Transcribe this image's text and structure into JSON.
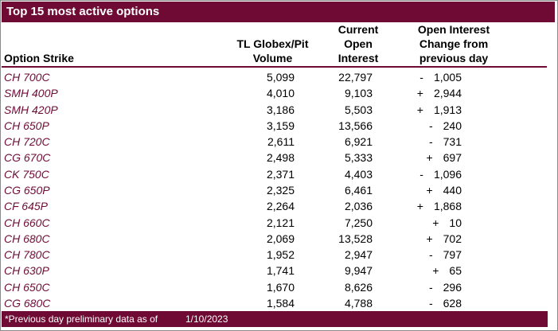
{
  "title": "Top 15 most active options",
  "columns": {
    "strike": "Option Strike",
    "volume": "TL Globex/Pit\nVolume",
    "open_interest": "Current\nOpen\nInterest",
    "change": "Open Interest\nChange from\nprevious day"
  },
  "rows": [
    {
      "strike": "CH 700C",
      "volume": "5,099",
      "open_interest": "22,797",
      "change_sign": "-",
      "change_value": "1,005"
    },
    {
      "strike": "SMH 400P",
      "volume": "4,010",
      "open_interest": "9,103",
      "change_sign": "+",
      "change_value": "2,944"
    },
    {
      "strike": "SMH 420P",
      "volume": "3,186",
      "open_interest": "5,503",
      "change_sign": "+",
      "change_value": "1,913"
    },
    {
      "strike": "CH 650P",
      "volume": "3,159",
      "open_interest": "13,566",
      "change_sign": "-",
      "change_value": "240"
    },
    {
      "strike": "CH 720C",
      "volume": "2,611",
      "open_interest": "6,921",
      "change_sign": "-",
      "change_value": "731"
    },
    {
      "strike": "CG 670C",
      "volume": "2,498",
      "open_interest": "5,333",
      "change_sign": "+",
      "change_value": "697"
    },
    {
      "strike": "CK 750C",
      "volume": "2,371",
      "open_interest": "4,403",
      "change_sign": "-",
      "change_value": "1,096"
    },
    {
      "strike": "CG 650P",
      "volume": "2,325",
      "open_interest": "6,461",
      "change_sign": "+",
      "change_value": "440"
    },
    {
      "strike": "CF 645P",
      "volume": "2,264",
      "open_interest": "2,036",
      "change_sign": "+",
      "change_value": "1,868"
    },
    {
      "strike": "CH 660C",
      "volume": "2,121",
      "open_interest": "7,250",
      "change_sign": "+",
      "change_value": "10"
    },
    {
      "strike": "CH 680C",
      "volume": "2,069",
      "open_interest": "13,528",
      "change_sign": "+",
      "change_value": "702"
    },
    {
      "strike": "CH 780C",
      "volume": "1,952",
      "open_interest": "2,947",
      "change_sign": "-",
      "change_value": "797"
    },
    {
      "strike": "CH 630P",
      "volume": "1,741",
      "open_interest": "9,947",
      "change_sign": "+",
      "change_value": "65"
    },
    {
      "strike": "CH 650C",
      "volume": "1,670",
      "open_interest": "8,626",
      "change_sign": "-",
      "change_value": "296"
    },
    {
      "strike": "CG 680C",
      "volume": "1,584",
      "open_interest": "4,788",
      "change_sign": "-",
      "change_value": "628"
    }
  ],
  "footer": {
    "note": "*Previous day preliminary data as of",
    "date": "1/10/2023"
  },
  "colors": {
    "accent_maroon": "#6E0A33",
    "strike_text": "#6E0B35",
    "outer_border": "#8a8a8a"
  }
}
